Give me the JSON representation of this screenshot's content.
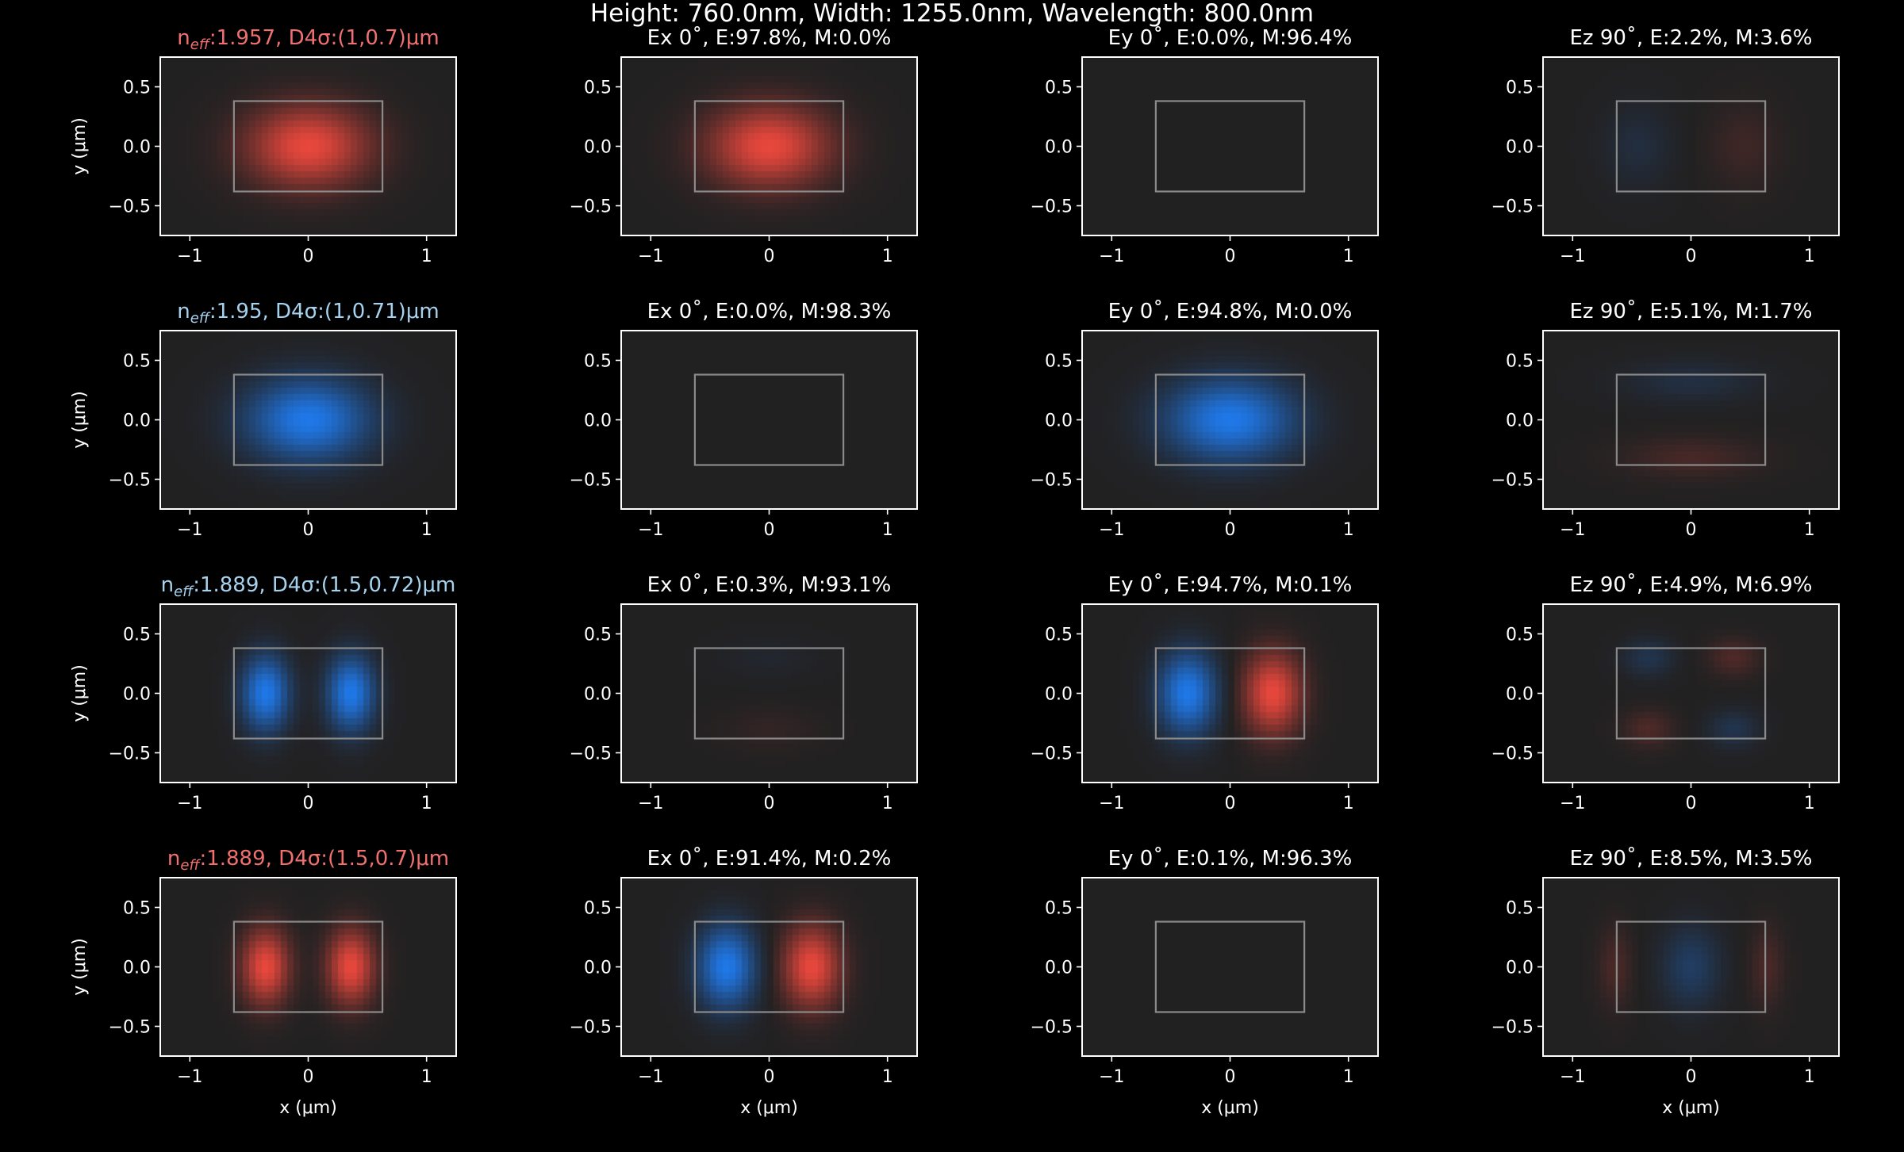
{
  "suptitle": "Height: 760.0nm, Width: 1255.0nm, Wavelength: 800.0nm",
  "colors": {
    "background": "#000000",
    "axes_face": "#222122",
    "axes_edge": "#ffffff",
    "waveguide_outline": "#8a8a8a",
    "text": "#ffffff",
    "positive": "#e8473c",
    "negative": "#1f78e8",
    "title_te": "#f07070",
    "title_tm": "#a6d2ee"
  },
  "chart_data": {
    "type": "heatmap",
    "layout": "4 rows x 4 columns of field-profile panels",
    "xlabel": "x (μm)",
    "ylabel": "y (μm)",
    "xlim": [
      -1.25,
      1.25
    ],
    "ylim": [
      -0.75,
      0.75
    ],
    "xticks": [
      -1,
      0,
      1
    ],
    "xtick_labels": [
      "−1",
      "0",
      "1"
    ],
    "yticks": [
      0.5,
      0.0,
      -0.5
    ],
    "ytick_labels": [
      "0.5",
      "0.0",
      "−0.5"
    ],
    "waveguide_core": {
      "x": [
        -0.6275,
        0.6275
      ],
      "y": [
        -0.38,
        0.38
      ]
    },
    "rows": [
      {
        "mode_title": {
          "n_label": "n",
          "n_sub": "eff",
          "rest": ":1.957, D4σ:(1,0.7)μm",
          "color": "title_te"
        },
        "panels": [
          {
            "title": "",
            "lobes": [
              {
                "x": 0.0,
                "y": 0.0,
                "sx": 0.36,
                "sy": 0.24,
                "amp": 1.0
              }
            ]
          },
          {
            "title": "Ex 0˚, E:97.8%, M:0.0%",
            "lobes": [
              {
                "x": 0.0,
                "y": 0.0,
                "sx": 0.36,
                "sy": 0.24,
                "amp": 1.0
              }
            ]
          },
          {
            "title": "Ey 0˚, E:0.0%, M:96.4%",
            "lobes": []
          },
          {
            "title": "Ez 90˚, E:2.2%, M:3.6%",
            "lobes": [
              {
                "x": -0.45,
                "y": 0.0,
                "sx": 0.2,
                "sy": 0.24,
                "amp": -0.14
              },
              {
                "x": 0.45,
                "y": 0.0,
                "sx": 0.2,
                "sy": 0.24,
                "amp": 0.14
              }
            ]
          }
        ]
      },
      {
        "mode_title": {
          "n_label": "n",
          "n_sub": "eff",
          "rest": ":1.95, D4σ:(1,0.71)μm",
          "color": "title_tm"
        },
        "panels": [
          {
            "title": "",
            "lobes": [
              {
                "x": 0.0,
                "y": 0.0,
                "sx": 0.36,
                "sy": 0.24,
                "amp": -1.0
              }
            ]
          },
          {
            "title": "Ex 0˚, E:0.0%, M:98.3%",
            "lobes": []
          },
          {
            "title": "Ey 0˚, E:94.8%, M:0.0%",
            "lobes": [
              {
                "x": 0.0,
                "y": 0.0,
                "sx": 0.38,
                "sy": 0.24,
                "amp": -1.0
              }
            ]
          },
          {
            "title": "Ez 90˚, E:5.1%, M:1.7%",
            "lobes": [
              {
                "x": 0.0,
                "y": 0.32,
                "sx": 0.4,
                "sy": 0.12,
                "amp": -0.16
              },
              {
                "x": 0.0,
                "y": -0.32,
                "sx": 0.4,
                "sy": 0.12,
                "amp": 0.18
              }
            ]
          }
        ]
      },
      {
        "mode_title": {
          "n_label": "n",
          "n_sub": "eff",
          "rest": ":1.889, D4σ:(1.5,0.72)μm",
          "color": "title_tm"
        },
        "panels": [
          {
            "title": "",
            "lobes": [
              {
                "x": -0.36,
                "y": 0.0,
                "sx": 0.14,
                "sy": 0.22,
                "amp": -1.0
              },
              {
                "x": 0.36,
                "y": 0.0,
                "sx": 0.14,
                "sy": 0.22,
                "amp": -1.0
              }
            ]
          },
          {
            "title": "Ex 0˚, E:0.3%, M:93.1%",
            "lobes": [
              {
                "x": 0.0,
                "y": 0.3,
                "sx": 0.28,
                "sy": 0.12,
                "amp": -0.06
              },
              {
                "x": 0.0,
                "y": -0.3,
                "sx": 0.28,
                "sy": 0.12,
                "amp": 0.08
              }
            ]
          },
          {
            "title": "Ey 0˚, E:94.7%, M:0.1%",
            "lobes": [
              {
                "x": -0.36,
                "y": 0.0,
                "sx": 0.17,
                "sy": 0.24,
                "amp": -1.0
              },
              {
                "x": 0.36,
                "y": 0.0,
                "sx": 0.17,
                "sy": 0.24,
                "amp": 1.0
              }
            ]
          },
          {
            "title": "Ez 90˚, E:4.9%, M:6.9%",
            "lobes": [
              {
                "x": -0.36,
                "y": 0.3,
                "sx": 0.15,
                "sy": 0.11,
                "amp": -0.22
              },
              {
                "x": 0.36,
                "y": 0.3,
                "sx": 0.15,
                "sy": 0.11,
                "amp": 0.22
              },
              {
                "x": -0.36,
                "y": -0.3,
                "sx": 0.15,
                "sy": 0.11,
                "amp": 0.22
              },
              {
                "x": 0.36,
                "y": -0.3,
                "sx": 0.15,
                "sy": 0.11,
                "amp": -0.22
              }
            ]
          }
        ]
      },
      {
        "mode_title": {
          "n_label": "n",
          "n_sub": "eff",
          "rest": ":1.889, D4σ:(1.5,0.7)μm",
          "color": "title_te"
        },
        "panels": [
          {
            "title": "",
            "lobes": [
              {
                "x": -0.36,
                "y": 0.0,
                "sx": 0.14,
                "sy": 0.22,
                "amp": 1.0
              },
              {
                "x": 0.36,
                "y": 0.0,
                "sx": 0.14,
                "sy": 0.22,
                "amp": 1.0
              }
            ]
          },
          {
            "title": "Ex 0˚, E:91.4%, M:0.2%",
            "lobes": [
              {
                "x": -0.36,
                "y": 0.0,
                "sx": 0.17,
                "sy": 0.24,
                "amp": -1.0
              },
              {
                "x": 0.36,
                "y": 0.0,
                "sx": 0.17,
                "sy": 0.24,
                "amp": 1.0
              }
            ]
          },
          {
            "title": "Ey 0˚, E:0.1%, M:96.3%",
            "lobes": []
          },
          {
            "title": "Ez 90˚, E:8.5%, M:3.5%",
            "lobes": [
              {
                "x": -0.64,
                "y": 0.0,
                "sx": 0.1,
                "sy": 0.24,
                "amp": 0.2
              },
              {
                "x": 0.0,
                "y": 0.0,
                "sx": 0.17,
                "sy": 0.24,
                "amp": -0.32
              },
              {
                "x": 0.64,
                "y": 0.0,
                "sx": 0.1,
                "sy": 0.24,
                "amp": 0.2
              }
            ]
          }
        ]
      }
    ]
  }
}
